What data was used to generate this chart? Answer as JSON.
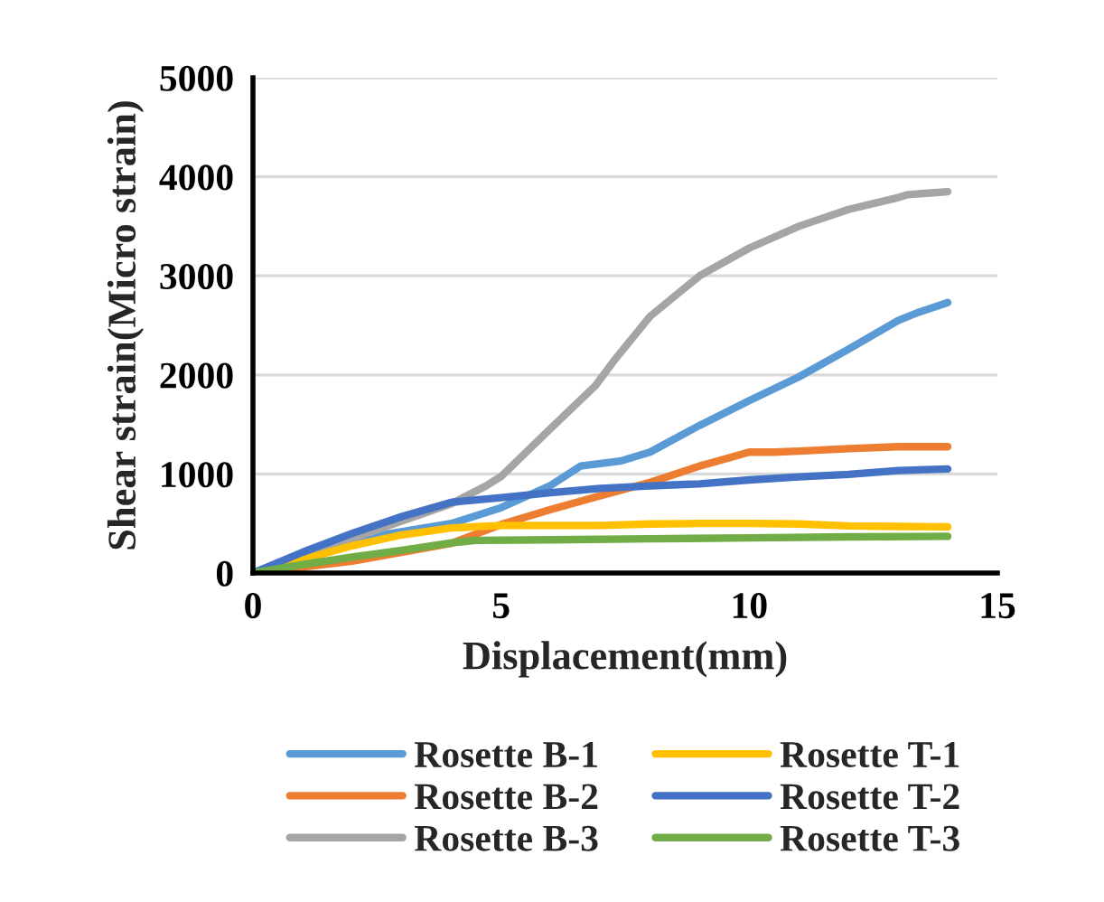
{
  "chart_data": {
    "type": "line",
    "xlabel": "Displacement(mm)",
    "ylabel": "Shear strain(Micro strain)",
    "xlim": [
      0,
      15
    ],
    "xticks": [
      0,
      5,
      10,
      15
    ],
    "ylim": [
      0,
      5000
    ],
    "yticks": [
      0,
      1000,
      2000,
      3000,
      4000,
      5000
    ],
    "grid": "y",
    "legend": "bottom",
    "marker": "none",
    "line_style": "solid",
    "series": [
      {
        "name": "Rosette B-1",
        "color": "#5b9bd5",
        "x": [
          0,
          2,
          4,
          5,
          6,
          6.6,
          7.4,
          8,
          9,
          10,
          11,
          12,
          13,
          13.4,
          14
        ],
        "values": [
          0,
          335,
          500,
          660,
          885,
          1080,
          1130,
          1220,
          1490,
          1740,
          1980,
          2260,
          2550,
          2630,
          2730
        ]
      },
      {
        "name": "Rosette B-2",
        "color": "#ed7d31",
        "x": [
          0,
          2,
          4,
          5,
          6,
          7,
          8,
          9,
          10,
          10.5,
          11,
          12,
          13,
          14
        ],
        "values": [
          0,
          120,
          300,
          490,
          640,
          780,
          915,
          1080,
          1220,
          1220,
          1230,
          1255,
          1275,
          1275
        ]
      },
      {
        "name": "Rosette B-3",
        "color": "#a5a5a5",
        "x": [
          0,
          4,
          4.7,
          5,
          6,
          6.9,
          7.3,
          8,
          9,
          10,
          11,
          12,
          13,
          13.2,
          14
        ],
        "values": [
          0,
          700,
          880,
          975,
          1460,
          1890,
          2160,
          2590,
          3000,
          3280,
          3500,
          3670,
          3790,
          3820,
          3850
        ]
      },
      {
        "name": "Rosette T-1",
        "color": "#ffc000",
        "x": [
          0,
          1,
          2,
          3,
          4,
          5,
          6,
          7,
          8,
          9,
          10,
          11,
          12,
          13,
          14
        ],
        "values": [
          0,
          135,
          275,
          385,
          455,
          480,
          480,
          480,
          495,
          500,
          500,
          495,
          475,
          470,
          465
        ]
      },
      {
        "name": "Rosette T-2",
        "color": "#4472c4",
        "x": [
          0,
          1,
          2,
          3,
          4,
          5,
          6,
          7,
          8,
          9,
          10,
          11,
          12,
          13,
          14
        ],
        "values": [
          0,
          210,
          400,
          570,
          715,
          760,
          810,
          855,
          880,
          900,
          940,
          970,
          995,
          1035,
          1050
        ]
      },
      {
        "name": "Rosette T-3",
        "color": "#70ad47",
        "x": [
          0,
          1,
          2,
          3,
          4,
          4.5,
          6,
          8,
          10,
          12,
          14
        ],
        "values": [
          0,
          85,
          160,
          230,
          305,
          330,
          335,
          345,
          355,
          365,
          370
        ]
      }
    ]
  }
}
